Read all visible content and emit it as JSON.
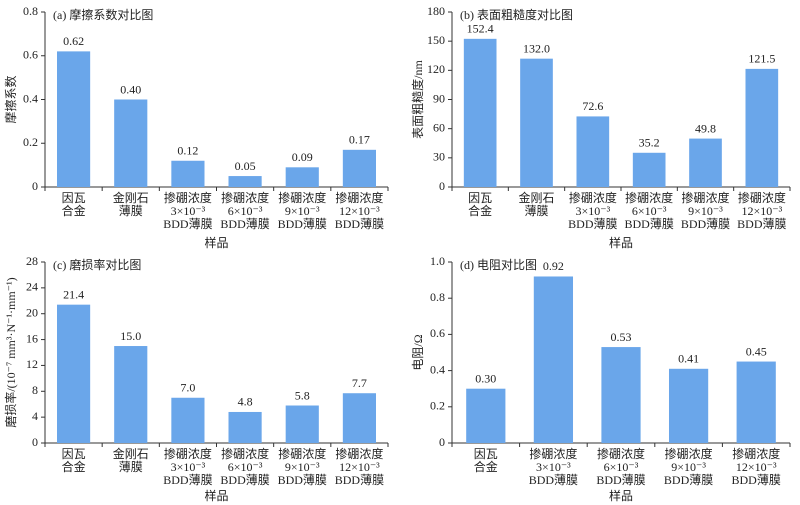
{
  "chart_data": [
    {
      "type": "bar",
      "title": "(a) 摩擦系数对比图",
      "x_label": "样品",
      "y_label": "摩擦系数",
      "color": "#6aa6ea",
      "categories": [
        [
          "因瓦",
          "合金"
        ],
        [
          "金刚石",
          "薄膜"
        ],
        [
          "掺硼浓度",
          "3×10⁻³",
          "BDD薄膜"
        ],
        [
          "掺硼浓度",
          "6×10⁻³",
          "BDD薄膜"
        ],
        [
          "掺硼浓度",
          "9×10⁻³",
          "BDD薄膜"
        ],
        [
          "掺硼浓度",
          "12×10⁻³",
          "BDD薄膜"
        ]
      ],
      "values": [
        0.62,
        0.4,
        0.12,
        0.05,
        0.09,
        0.17
      ],
      "value_labels": [
        "0.62",
        "0.40",
        "0.12",
        "0.05",
        "0.09",
        "0.17"
      ],
      "ylim": [
        0,
        0.8
      ],
      "yticks": [
        0,
        0.2,
        0.4,
        0.6,
        0.8
      ]
    },
    {
      "type": "bar",
      "title": "(b) 表面粗糙度对比图",
      "x_label": "样品",
      "y_label": "表面粗糙度/nm",
      "color": "#6aa6ea",
      "categories": [
        [
          "因瓦",
          "合金"
        ],
        [
          "金刚石",
          "薄膜"
        ],
        [
          "掺硼浓度",
          "3×10⁻³",
          "BDD薄膜"
        ],
        [
          "掺硼浓度",
          "6×10⁻³",
          "BDD薄膜"
        ],
        [
          "掺硼浓度",
          "9×10⁻³",
          "BDD薄膜"
        ],
        [
          "掺硼浓度",
          "12×10⁻³",
          "BDD薄膜"
        ]
      ],
      "values": [
        152.4,
        132,
        72.6,
        35.2,
        49.8,
        121.5
      ],
      "value_labels": [
        "152.4",
        "132.0",
        "72.6",
        "35.2",
        "49.8",
        "121.5"
      ],
      "ylim": [
        0,
        180
      ],
      "yticks": [
        0,
        30,
        60,
        90,
        120,
        150,
        180
      ]
    },
    {
      "type": "bar",
      "title": "(c) 磨损率对比图",
      "x_label": "样品",
      "y_label": "磨损率/(10⁻⁷ mm³·N⁻¹·mm⁻¹)",
      "color": "#6aa6ea",
      "categories": [
        [
          "因瓦",
          "合金"
        ],
        [
          "金刚石",
          "薄膜"
        ],
        [
          "掺硼浓度",
          "3×10⁻³",
          "BDD薄膜"
        ],
        [
          "掺硼浓度",
          "6×10⁻³",
          "BDD薄膜"
        ],
        [
          "掺硼浓度",
          "9×10⁻³",
          "BDD薄膜"
        ],
        [
          "掺硼浓度",
          "12×10⁻³",
          "BDD薄膜"
        ]
      ],
      "values": [
        21.4,
        15,
        7,
        4.8,
        5.8,
        7.7
      ],
      "value_labels": [
        "21.4",
        "15.0",
        "7.0",
        "4.8",
        "5.8",
        "7.7"
      ],
      "ylim": [
        0,
        28
      ],
      "yticks": [
        0,
        4,
        8,
        12,
        16,
        20,
        24,
        28
      ]
    },
    {
      "type": "bar",
      "title": "(d) 电阻对比图",
      "x_label": "样品",
      "y_label": "电阻/Ω",
      "color": "#6aa6ea",
      "categories": [
        [
          "因瓦",
          "合金"
        ],
        [
          "掺硼浓度",
          "3×10⁻³",
          "BDD薄膜"
        ],
        [
          "掺硼浓度",
          "6×10⁻³",
          "BDD薄膜"
        ],
        [
          "掺硼浓度",
          "9×10⁻³",
          "BDD薄膜"
        ],
        [
          "掺硼浓度",
          "12×10⁻³",
          "BDD薄膜"
        ]
      ],
      "values": [
        0.3,
        0.92,
        0.53,
        0.41,
        0.45
      ],
      "value_labels": [
        "0.30",
        "0.92",
        "0.53",
        "0.41",
        "0.45"
      ],
      "ylim": [
        0,
        1
      ],
      "yticks": [
        0,
        0.2,
        0.4,
        0.6,
        0.8,
        {
          "value": 1,
          "label": "1.0"
        }
      ]
    }
  ]
}
